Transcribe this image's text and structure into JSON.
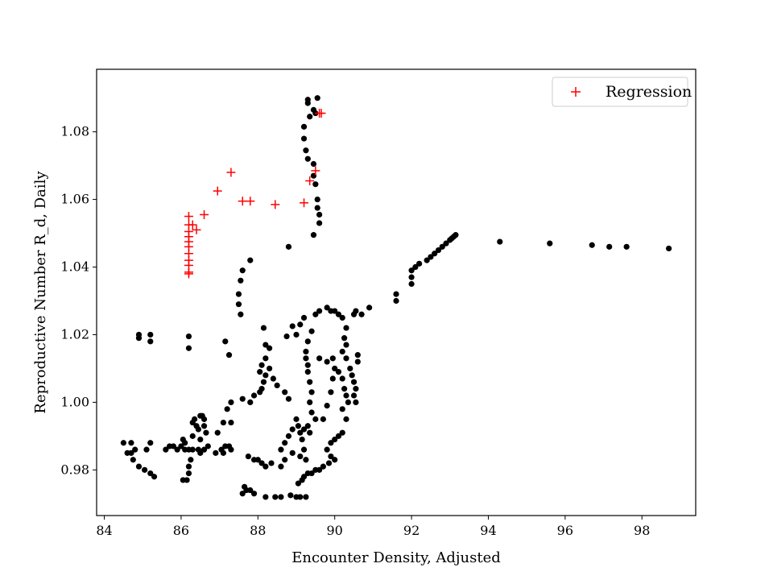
{
  "chart_data": {
    "type": "scatter",
    "title": "",
    "xlabel": "Encounter Density, Adjusted",
    "ylabel": "Reproductive Number R_d, Daily",
    "xlim": [
      83.8,
      99.4
    ],
    "ylim": [
      0.9665,
      1.0985
    ],
    "xticks": [
      84,
      86,
      88,
      90,
      92,
      94,
      96,
      98
    ],
    "yticks": [
      0.98,
      1.0,
      1.02,
      1.04,
      1.06,
      1.08
    ],
    "xtick_labels": [
      "84",
      "86",
      "88",
      "90",
      "92",
      "94",
      "96",
      "98"
    ],
    "ytick_labels": [
      "0.98",
      "1.00",
      "1.02",
      "1.04",
      "1.06",
      "1.08"
    ],
    "grid": false,
    "legend_position": "top-right",
    "legend": [
      "Regression"
    ],
    "series": [
      {
        "marker": "circle",
        "color": "#000000",
        "points": [
          [
            84.5,
            0.988
          ],
          [
            84.7,
            0.988
          ],
          [
            84.6,
            0.985
          ],
          [
            84.7,
            0.985
          ],
          [
            84.75,
            0.983
          ],
          [
            84.8,
            0.986
          ],
          [
            84.9,
            0.981
          ],
          [
            85.1,
            0.986
          ],
          [
            85.2,
            0.988
          ],
          [
            85.05,
            0.98
          ],
          [
            85.2,
            0.979
          ],
          [
            85.3,
            0.978
          ],
          [
            84.9,
            1.02
          ],
          [
            84.9,
            1.019
          ],
          [
            85.2,
            1.02
          ],
          [
            85.2,
            1.018
          ],
          [
            85.6,
            0.986
          ],
          [
            85.7,
            0.987
          ],
          [
            85.8,
            0.987
          ],
          [
            85.9,
            0.986
          ],
          [
            86.0,
            0.987
          ],
          [
            86.1,
            0.986
          ],
          [
            86.2,
            0.986
          ],
          [
            86.3,
            0.986
          ],
          [
            86.45,
            0.986
          ],
          [
            86.5,
            0.985
          ],
          [
            86.6,
            0.986
          ],
          [
            86.7,
            0.987
          ],
          [
            86.1,
            0.988
          ],
          [
            86.05,
            0.989
          ],
          [
            86.2,
            1.0195
          ],
          [
            86.2,
            1.016
          ],
          [
            86.25,
            0.983
          ],
          [
            86.2,
            0.981
          ],
          [
            86.2,
            0.979
          ],
          [
            86.15,
            0.977
          ],
          [
            86.05,
            0.977
          ],
          [
            86.3,
            0.99
          ],
          [
            86.3,
            0.994
          ],
          [
            86.35,
            0.995
          ],
          [
            86.4,
            0.993
          ],
          [
            86.45,
            0.992
          ],
          [
            86.5,
            0.996
          ],
          [
            86.55,
            0.996
          ],
          [
            86.6,
            0.995
          ],
          [
            86.6,
            0.993
          ],
          [
            86.65,
            0.991
          ],
          [
            86.5,
            0.989
          ],
          [
            86.9,
            0.985
          ],
          [
            87.05,
            0.986
          ],
          [
            87.1,
            0.985
          ],
          [
            87.15,
            0.987
          ],
          [
            87.25,
            0.987
          ],
          [
            87.3,
            0.986
          ],
          [
            86.95,
            0.991
          ],
          [
            87.1,
            0.994
          ],
          [
            87.3,
            0.994
          ],
          [
            87.2,
            0.998
          ],
          [
            87.3,
            1.0
          ],
          [
            87.15,
            1.018
          ],
          [
            87.25,
            1.014
          ],
          [
            87.5,
            1.032
          ],
          [
            87.5,
            1.029
          ],
          [
            87.55,
            1.026
          ],
          [
            87.55,
            1.036
          ],
          [
            87.6,
            1.039
          ],
          [
            87.8,
            1.042
          ],
          [
            87.6,
            1.001
          ],
          [
            87.8,
            1.0
          ],
          [
            87.9,
            1.002
          ],
          [
            88.05,
            1.003
          ],
          [
            88.1,
            1.004
          ],
          [
            88.15,
            1.006
          ],
          [
            88.2,
            1.008
          ],
          [
            88.05,
            1.009
          ],
          [
            88.1,
            1.011
          ],
          [
            88.2,
            1.013
          ],
          [
            88.3,
            1.016
          ],
          [
            88.2,
            1.017
          ],
          [
            88.15,
            1.022
          ],
          [
            88.3,
            1.01
          ],
          [
            88.4,
            1.007
          ],
          [
            88.5,
            1.005
          ],
          [
            88.7,
            1.003
          ],
          [
            88.8,
            1.001
          ],
          [
            88.8,
            1.046
          ],
          [
            87.6,
            0.973
          ],
          [
            87.7,
            0.974
          ],
          [
            87.65,
            0.975
          ],
          [
            87.8,
            0.974
          ],
          [
            87.9,
            0.973
          ],
          [
            88.2,
            0.972
          ],
          [
            88.45,
            0.972
          ],
          [
            88.6,
            0.972
          ],
          [
            88.85,
            0.9725
          ],
          [
            89.0,
            0.972
          ],
          [
            89.1,
            0.972
          ],
          [
            89.25,
            0.972
          ],
          [
            87.75,
            0.984
          ],
          [
            87.9,
            0.983
          ],
          [
            88.0,
            0.983
          ],
          [
            88.1,
            0.982
          ],
          [
            88.2,
            0.981
          ],
          [
            88.35,
            0.982
          ],
          [
            88.6,
            0.981
          ],
          [
            88.7,
            0.983
          ],
          [
            88.9,
            0.985
          ],
          [
            88.6,
            0.986
          ],
          [
            88.7,
            0.988
          ],
          [
            88.8,
            0.99
          ],
          [
            88.9,
            0.992
          ],
          [
            89.0,
            0.995
          ],
          [
            89.05,
            0.993
          ],
          [
            89.1,
            0.991
          ],
          [
            89.2,
            0.992
          ],
          [
            89.3,
            0.993
          ],
          [
            89.35,
            0.991
          ],
          [
            89.15,
            0.989
          ],
          [
            89.2,
            0.986
          ],
          [
            89.25,
            0.983
          ],
          [
            89.1,
            0.984
          ],
          [
            89.05,
            0.976
          ],
          [
            89.15,
            0.977
          ],
          [
            89.2,
            0.978
          ],
          [
            89.3,
            0.979
          ],
          [
            89.4,
            0.979
          ],
          [
            89.5,
            0.98
          ],
          [
            89.6,
            0.98
          ],
          [
            89.7,
            0.981
          ],
          [
            89.0,
            1.02
          ],
          [
            89.1,
            1.023
          ],
          [
            89.2,
            1.025
          ],
          [
            89.3,
            1.018
          ],
          [
            89.25,
            1.015
          ],
          [
            89.25,
            1.013
          ],
          [
            89.3,
            1.011
          ],
          [
            89.3,
            1.009
          ],
          [
            89.35,
            1.006
          ],
          [
            89.4,
            1.003
          ],
          [
            89.35,
            1.0
          ],
          [
            89.4,
            0.997
          ],
          [
            89.5,
            0.995
          ],
          [
            89.4,
            1.021
          ],
          [
            89.5,
            1.026
          ],
          [
            89.6,
            1.027
          ],
          [
            89.8,
            1.028
          ],
          [
            89.9,
            1.027
          ],
          [
            89.6,
            1.013
          ],
          [
            89.8,
            1.012
          ],
          [
            89.95,
            1.013
          ],
          [
            89.7,
            0.995
          ],
          [
            89.8,
            0.999
          ],
          [
            89.9,
            1.003
          ],
          [
            89.95,
            1.007
          ],
          [
            90.0,
            1.01
          ],
          [
            89.8,
            0.986
          ],
          [
            89.9,
            0.988
          ],
          [
            90.0,
            0.989
          ],
          [
            90.1,
            0.99
          ],
          [
            90.2,
            0.991
          ],
          [
            89.9,
            0.984
          ],
          [
            90.0,
            0.983
          ],
          [
            89.85,
            0.982
          ],
          [
            90.0,
            1.027
          ],
          [
            90.1,
            1.026
          ],
          [
            90.2,
            1.025
          ],
          [
            90.3,
            1.022
          ],
          [
            90.25,
            1.019
          ],
          [
            90.3,
            1.017
          ],
          [
            90.2,
            1.015
          ],
          [
            90.3,
            1.013
          ],
          [
            90.1,
            1.009
          ],
          [
            90.2,
            1.007
          ],
          [
            90.25,
            1.004
          ],
          [
            90.3,
            1.002
          ],
          [
            90.2,
            0.998
          ],
          [
            90.3,
            0.995
          ],
          [
            90.35,
            1.0
          ],
          [
            90.4,
            1.01
          ],
          [
            90.45,
            1.008
          ],
          [
            90.5,
            1.006
          ],
          [
            90.55,
            1.004
          ],
          [
            90.5,
            1.002
          ],
          [
            90.55,
            1.0
          ],
          [
            90.6,
            1.012
          ],
          [
            90.6,
            1.014
          ],
          [
            90.5,
            1.026
          ],
          [
            90.55,
            1.027
          ],
          [
            90.7,
            1.026
          ],
          [
            90.9,
            1.028
          ],
          [
            91.6,
            1.03
          ],
          [
            91.6,
            1.032
          ],
          [
            92.0,
            1.035
          ],
          [
            92.0,
            1.037
          ],
          [
            92.0,
            1.039
          ],
          [
            92.1,
            1.04
          ],
          [
            92.2,
            1.041
          ],
          [
            92.4,
            1.042
          ],
          [
            92.5,
            1.043
          ],
          [
            92.6,
            1.044
          ],
          [
            92.7,
            1.045
          ],
          [
            92.8,
            1.046
          ],
          [
            92.9,
            1.047
          ],
          [
            93.0,
            1.048
          ],
          [
            93.05,
            1.0485
          ],
          [
            93.1,
            1.049
          ],
          [
            93.15,
            1.0495
          ],
          [
            94.3,
            1.0475
          ],
          [
            95.6,
            1.047
          ],
          [
            96.7,
            1.0465
          ],
          [
            97.15,
            1.046
          ],
          [
            97.6,
            1.046
          ],
          [
            98.7,
            1.0455
          ],
          [
            88.9,
            1.0225
          ],
          [
            88.75,
            1.0195
          ],
          [
            89.2,
            1.0815
          ],
          [
            89.2,
            1.078
          ],
          [
            89.25,
            1.0745
          ],
          [
            89.3,
            1.072
          ],
          [
            89.35,
            1.0845
          ],
          [
            89.3,
            1.0885
          ],
          [
            89.3,
            1.0895
          ],
          [
            89.45,
            1.0865
          ],
          [
            89.5,
            1.0855
          ],
          [
            89.55,
            1.09
          ],
          [
            89.45,
            1.0705
          ],
          [
            89.45,
            1.067
          ],
          [
            89.5,
            1.0645
          ],
          [
            89.55,
            1.06
          ],
          [
            89.55,
            1.0575
          ],
          [
            89.6,
            1.0555
          ],
          [
            89.6,
            1.053
          ],
          [
            89.45,
            1.0495
          ]
        ]
      },
      {
        "name": "Regression",
        "marker": "plus",
        "color": "#ff0000",
        "points": [
          [
            86.2,
            1.055
          ],
          [
            86.2,
            1.0525
          ],
          [
            86.2,
            1.0505
          ],
          [
            86.2,
            1.049
          ],
          [
            86.2,
            1.0475
          ],
          [
            86.2,
            1.046
          ],
          [
            86.2,
            1.044
          ],
          [
            86.2,
            1.042
          ],
          [
            86.2,
            1.0405
          ],
          [
            86.2,
            1.0385
          ],
          [
            86.2,
            1.038
          ],
          [
            86.3,
            1.0525
          ],
          [
            86.4,
            1.051
          ],
          [
            86.6,
            1.0555
          ],
          [
            86.95,
            1.0625
          ],
          [
            87.3,
            1.068
          ],
          [
            87.6,
            1.0595
          ],
          [
            87.8,
            1.0595
          ],
          [
            88.45,
            1.0585
          ],
          [
            89.2,
            1.059
          ],
          [
            89.35,
            1.0655
          ],
          [
            89.5,
            1.0685
          ],
          [
            89.6,
            1.0855
          ],
          [
            89.65,
            1.0855
          ]
        ]
      }
    ]
  }
}
